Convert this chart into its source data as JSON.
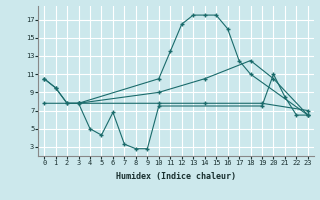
{
  "title": "",
  "xlabel": "Humidex (Indice chaleur)",
  "bg_color": "#cce8ec",
  "line_color": "#1a6b6b",
  "grid_color": "#ffffff",
  "x_ticks": [
    0,
    1,
    2,
    3,
    4,
    5,
    6,
    7,
    8,
    9,
    10,
    11,
    12,
    13,
    14,
    15,
    16,
    17,
    18,
    19,
    20,
    21,
    22,
    23
  ],
  "y_ticks": [
    3,
    5,
    7,
    9,
    11,
    13,
    15,
    17
  ],
  "ylim": [
    2.0,
    18.5
  ],
  "xlim": [
    -0.5,
    23.5
  ],
  "line1_x": [
    0,
    1,
    2,
    3,
    10,
    11,
    12,
    13,
    14,
    15,
    16,
    17,
    18,
    23
  ],
  "line1_y": [
    10.5,
    9.5,
    7.8,
    7.8,
    10.5,
    13.5,
    16.5,
    17.5,
    17.5,
    17.5,
    16.0,
    12.5,
    11.0,
    6.5
  ],
  "line2_x": [
    0,
    1,
    2,
    3,
    4,
    5,
    6,
    7,
    8,
    9,
    10,
    19,
    20,
    21,
    22,
    23
  ],
  "line2_y": [
    10.5,
    9.5,
    7.8,
    7.8,
    5.0,
    4.3,
    6.8,
    3.3,
    2.8,
    2.8,
    7.5,
    7.5,
    11.0,
    8.5,
    6.5,
    6.5
  ],
  "line3_x": [
    0,
    3,
    10,
    14,
    18,
    20,
    23
  ],
  "line3_y": [
    7.8,
    7.8,
    9.0,
    10.5,
    12.5,
    10.5,
    6.5
  ],
  "line4_x": [
    3,
    10,
    14,
    19,
    23
  ],
  "line4_y": [
    7.8,
    7.8,
    7.8,
    7.8,
    7.0
  ]
}
